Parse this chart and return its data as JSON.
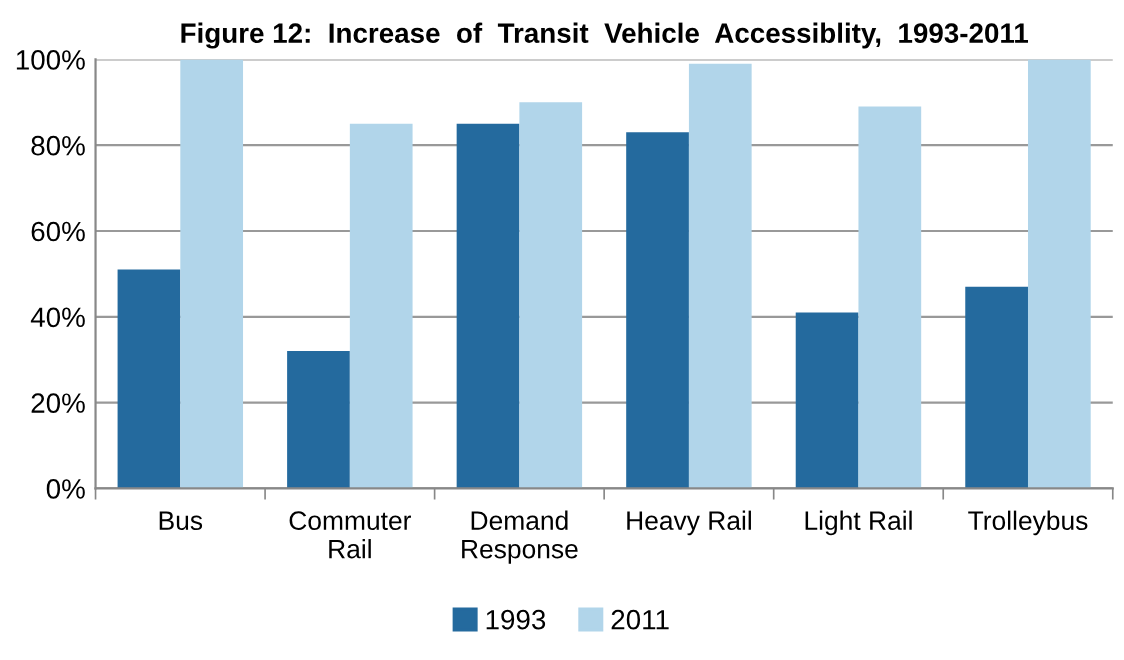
{
  "chart_data": {
    "type": "bar",
    "title": "Figure 12:  Increase  of  Transit  Vehicle  Accessiblity,  1993-2011",
    "categories": [
      "Bus",
      "Commuter\nRail",
      "Demand\nResponse",
      "Heavy Rail",
      "Light Rail",
      "Trolleybus"
    ],
    "series": [
      {
        "name": "1993",
        "color": "#246a9e",
        "values": [
          51,
          32,
          85,
          83,
          41,
          47
        ]
      },
      {
        "name": "2011",
        "color": "#b1d5ea",
        "values": [
          100,
          85,
          90,
          99,
          89,
          100
        ]
      }
    ],
    "ylim": [
      0,
      100
    ],
    "yticks": [
      {
        "value": 0,
        "label": "0%"
      },
      {
        "value": 20,
        "label": "20%"
      },
      {
        "value": 40,
        "label": "40%"
      },
      {
        "value": 60,
        "label": "60%"
      },
      {
        "value": 80,
        "label": "80%"
      },
      {
        "value": 100,
        "label": "100%"
      }
    ],
    "grid": "y",
    "legend": "bottom"
  }
}
